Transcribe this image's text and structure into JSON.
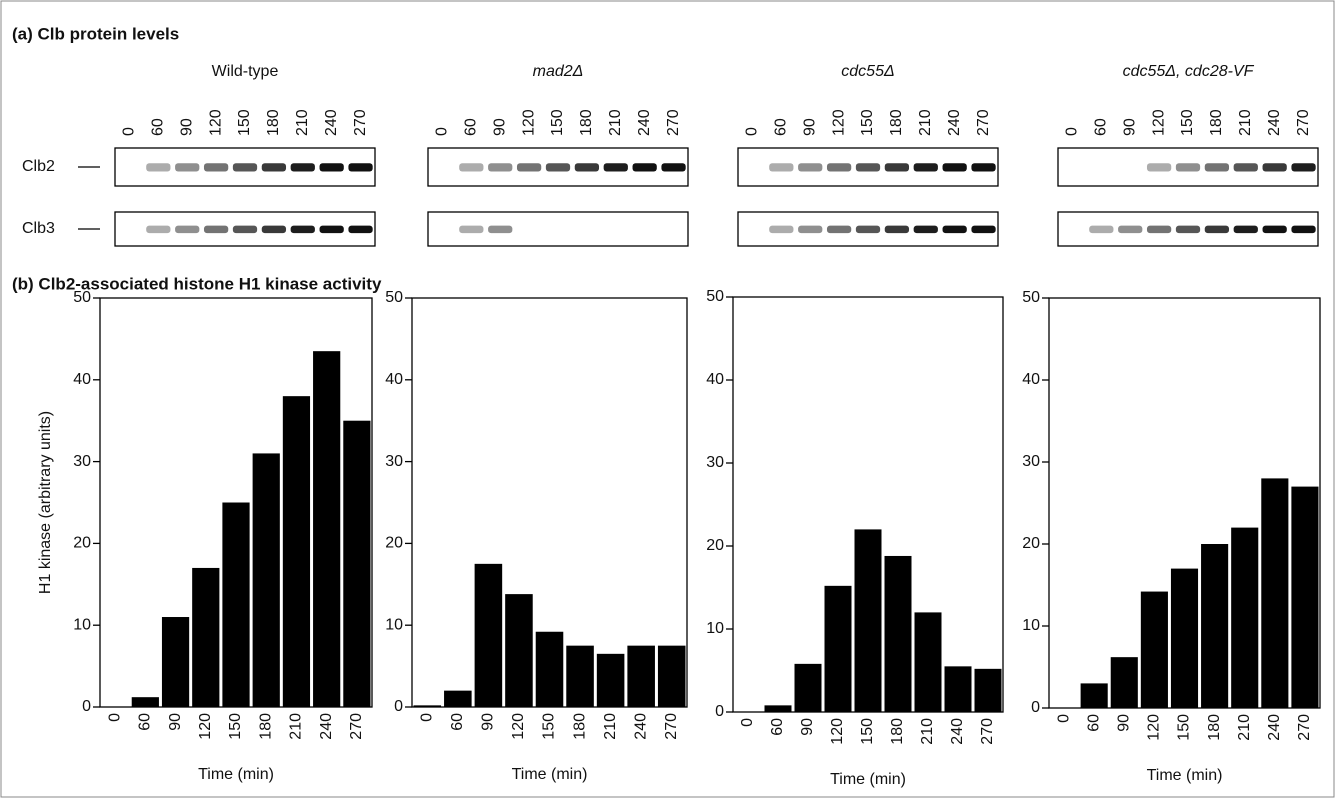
{
  "panel_a": {
    "title": "(a) Clb protein levels",
    "bands": [
      "Clb2",
      "Clb3"
    ],
    "blots": [
      {
        "label": "Wild-type",
        "lanes": [
          "0",
          "60",
          "90",
          "120",
          "150",
          "180",
          "210",
          "240",
          "270"
        ]
      },
      {
        "label": "mad2Δ",
        "lanes": [
          "0",
          "60",
          "90",
          "120",
          "150",
          "180",
          "210",
          "240",
          "270"
        ]
      },
      {
        "label": "cdc55Δ",
        "lanes": [
          "0",
          "60",
          "90",
          "120",
          "150",
          "180",
          "210",
          "240",
          "270"
        ]
      },
      {
        "label": "cdc55Δ, cdc28-VF",
        "lanes": [
          "0",
          "60",
          "90",
          "120",
          "150",
          "180",
          "210",
          "240",
          "270"
        ]
      }
    ]
  },
  "panel_b_title": "(b) Clb2-associated histone H1 kinase activity",
  "chart_data": [
    {
      "type": "bar",
      "ylabel": "H1 kinase (arbitrary units)",
      "xlabel": "Time (min)",
      "color": "#000000",
      "categories": [
        "0",
        "60",
        "90",
        "120",
        "150",
        "180",
        "210",
        "240",
        "270"
      ],
      "values": [
        0,
        1.2,
        11,
        17,
        25,
        31,
        38,
        43.5,
        35
      ],
      "ylim": [
        0,
        50
      ],
      "yticks": [
        0,
        10,
        20,
        30,
        40,
        50
      ]
    },
    {
      "type": "bar",
      "xlabel": "Time (min)",
      "color": "#000000",
      "categories": [
        "0",
        "60",
        "90",
        "120",
        "150",
        "180",
        "210",
        "240",
        "270"
      ],
      "values": [
        0.2,
        2,
        17.5,
        13.8,
        9.2,
        7.5,
        6.5,
        7.5,
        7.5
      ],
      "ylim": [
        0,
        50
      ],
      "yticks": [
        0,
        10,
        20,
        30,
        40,
        50
      ]
    },
    {
      "type": "bar",
      "xlabel": "Time (min)",
      "color": "#000000",
      "categories": [
        "0",
        "60",
        "90",
        "120",
        "150",
        "180",
        "210",
        "240",
        "270"
      ],
      "values": [
        0,
        0.8,
        5.8,
        15.2,
        22,
        18.8,
        12,
        5.5,
        5.2
      ],
      "ylim": [
        0,
        50
      ],
      "yticks": [
        0,
        10,
        20,
        30,
        40,
        50
      ]
    },
    {
      "type": "bar",
      "xlabel": "Time (min)",
      "color": "#000000",
      "categories": [
        "0",
        "60",
        "90",
        "120",
        "150",
        "180",
        "210",
        "240",
        "270"
      ],
      "values": [
        0,
        3,
        6.2,
        14.2,
        17,
        20,
        22,
        28,
        27
      ],
      "ylim": [
        0,
        50
      ],
      "yticks": [
        0,
        10,
        20,
        30,
        40,
        50
      ]
    }
  ]
}
